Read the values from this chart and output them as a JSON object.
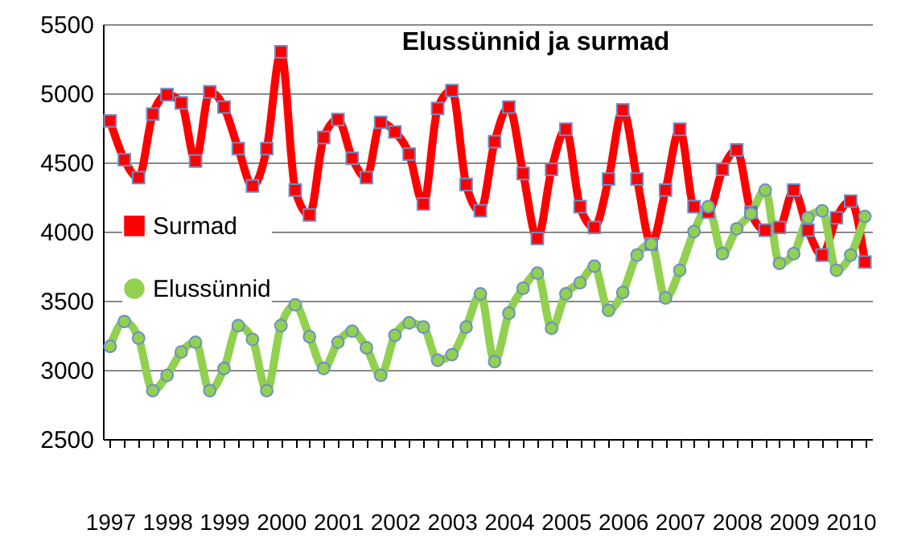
{
  "chart_data": {
    "type": "line",
    "title": "Elussünnid ja surmad",
    "categories": [
      "1997",
      null,
      null,
      null,
      "1998",
      null,
      null,
      null,
      "1999",
      null,
      null,
      null,
      "2000",
      null,
      null,
      null,
      "2001",
      null,
      null,
      null,
      "2002",
      null,
      null,
      null,
      "2003",
      null,
      null,
      null,
      "2004",
      null,
      null,
      null,
      "2005",
      null,
      null,
      null,
      "2006",
      null,
      null,
      null,
      "2007",
      null,
      null,
      null,
      "2008",
      null,
      null,
      null,
      "2009",
      null,
      null,
      null,
      "2010",
      null
    ],
    "series": [
      {
        "name": "Surmad",
        "color": "#ff0000",
        "marker": "square",
        "values": [
          4800,
          4520,
          4390,
          4850,
          4990,
          4930,
          4510,
          5010,
          4900,
          4600,
          4330,
          4600,
          5300,
          4300,
          4120,
          4680,
          4810,
          4530,
          4390,
          4790,
          4720,
          4560,
          4200,
          4890,
          5020,
          4340,
          4150,
          4650,
          4900,
          4420,
          3950,
          4450,
          4740,
          4180,
          4030,
          4380,
          4880,
          4380,
          3910,
          4300,
          4740,
          4180,
          4140,
          4450,
          4590,
          4140,
          4010,
          4030,
          4300,
          4010,
          3830,
          4100,
          4220,
          3780
        ]
      },
      {
        "name": "Elussünnid",
        "color": "#92d050",
        "marker": "circle",
        "values": [
          3170,
          3350,
          3230,
          2850,
          2960,
          3130,
          3200,
          2850,
          3010,
          3320,
          3220,
          2850,
          3320,
          3470,
          3240,
          3010,
          3200,
          3280,
          3160,
          2960,
          3250,
          3340,
          3310,
          3070,
          3110,
          3310,
          3550,
          3060,
          3410,
          3590,
          3700,
          3300,
          3550,
          3630,
          3750,
          3430,
          3560,
          3830,
          3910,
          3520,
          3720,
          4000,
          4180,
          3840,
          4020,
          4130,
          4300,
          3770,
          3840,
          4100,
          4150,
          3720,
          3830,
          4110
        ]
      }
    ],
    "ylim": [
      2500,
      5500
    ],
    "yticks": [
      2500,
      3000,
      3500,
      4000,
      4500,
      5000,
      5500
    ],
    "grid": "y",
    "legend": "left"
  }
}
